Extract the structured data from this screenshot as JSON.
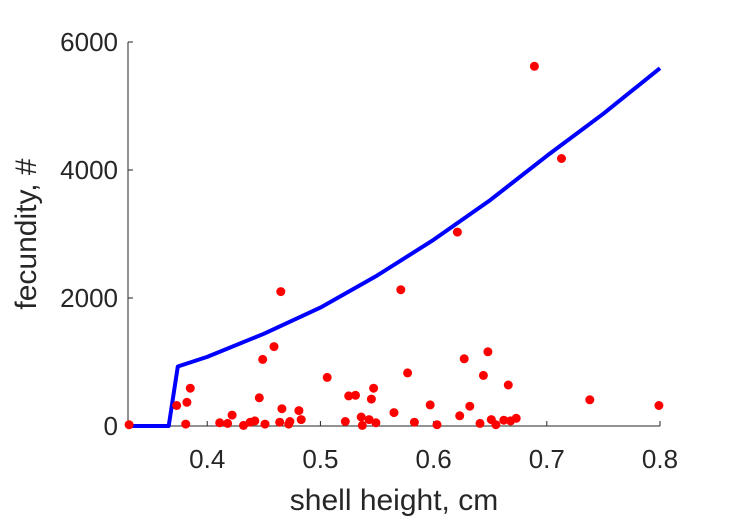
{
  "chart_data": {
    "type": "scatter",
    "xlabel": "shell height, cm",
    "ylabel": "fecundity, #",
    "xlim": [
      0.33,
      0.8
    ],
    "ylim": [
      0,
      6000
    ],
    "x_ticks": [
      0.4,
      0.5,
      0.6,
      0.7,
      0.8
    ],
    "x_tick_labels": [
      "0.4",
      "0.5",
      "0.6",
      "0.7",
      "0.8"
    ],
    "y_ticks": [
      0,
      2000,
      4000,
      6000
    ],
    "y_tick_labels": [
      "0",
      "2000",
      "4000",
      "6000"
    ],
    "grid": false,
    "legend": "none",
    "series": [
      {
        "kind": "scatter",
        "color": "#ff0000",
        "points": [
          [
            0.331,
            20
          ],
          [
            0.373,
            320
          ],
          [
            0.381,
            30
          ],
          [
            0.382,
            370
          ],
          [
            0.385,
            590
          ],
          [
            0.411,
            50
          ],
          [
            0.418,
            40
          ],
          [
            0.422,
            170
          ],
          [
            0.432,
            10
          ],
          [
            0.438,
            60
          ],
          [
            0.442,
            80
          ],
          [
            0.446,
            440
          ],
          [
            0.449,
            1040
          ],
          [
            0.451,
            30
          ],
          [
            0.459,
            1240
          ],
          [
            0.464,
            60
          ],
          [
            0.465,
            2100
          ],
          [
            0.466,
            270
          ],
          [
            0.472,
            30
          ],
          [
            0.473,
            70
          ],
          [
            0.481,
            240
          ],
          [
            0.483,
            100
          ],
          [
            0.506,
            760
          ],
          [
            0.522,
            70
          ],
          [
            0.525,
            470
          ],
          [
            0.531,
            480
          ],
          [
            0.536,
            140
          ],
          [
            0.537,
            10
          ],
          [
            0.543,
            100
          ],
          [
            0.545,
            420
          ],
          [
            0.547,
            590
          ],
          [
            0.549,
            50
          ],
          [
            0.565,
            210
          ],
          [
            0.571,
            2130
          ],
          [
            0.577,
            830
          ],
          [
            0.583,
            60
          ],
          [
            0.597,
            330
          ],
          [
            0.603,
            20
          ],
          [
            0.621,
            3030
          ],
          [
            0.623,
            160
          ],
          [
            0.627,
            1050
          ],
          [
            0.632,
            310
          ],
          [
            0.641,
            40
          ],
          [
            0.644,
            790
          ],
          [
            0.648,
            1160
          ],
          [
            0.651,
            100
          ],
          [
            0.655,
            20
          ],
          [
            0.662,
            90
          ],
          [
            0.666,
            640
          ],
          [
            0.668,
            80
          ],
          [
            0.673,
            120
          ],
          [
            0.689,
            5620
          ],
          [
            0.713,
            4180
          ],
          [
            0.738,
            410
          ],
          [
            0.799,
            320
          ]
        ]
      },
      {
        "kind": "line",
        "color": "#0000ff",
        "x": [
          0.33,
          0.366,
          0.374,
          0.4,
          0.45,
          0.5,
          0.55,
          0.6,
          0.65,
          0.7,
          0.75,
          0.8
        ],
        "y": [
          0,
          0,
          930,
          1080,
          1440,
          1850,
          2350,
          2910,
          3530,
          4220,
          4880,
          5590
        ]
      }
    ]
  }
}
